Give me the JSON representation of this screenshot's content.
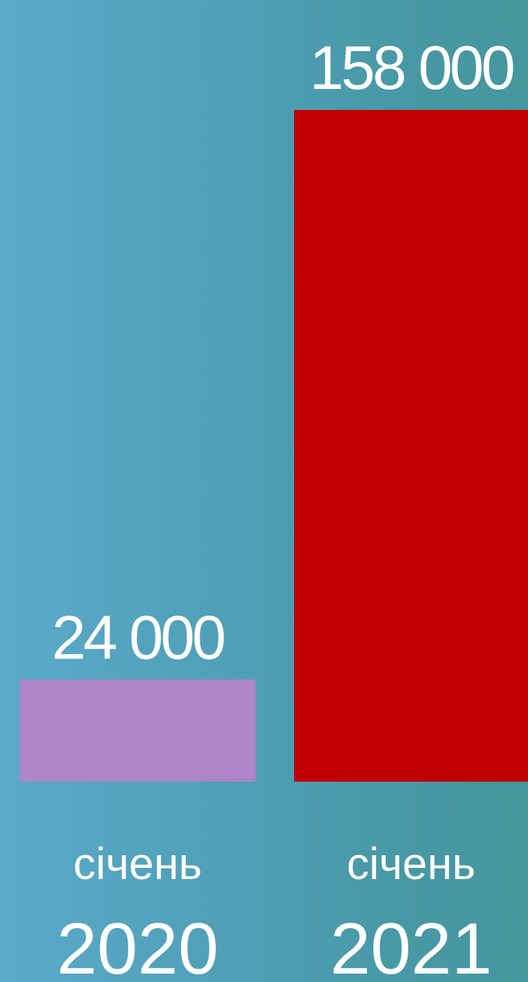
{
  "chart_data": {
    "type": "bar",
    "categories": [
      "2020",
      "2021"
    ],
    "months": [
      "січень",
      "січень"
    ],
    "values": [
      24000,
      158000
    ],
    "value_labels": [
      "24 000",
      "158 000"
    ],
    "colors": [
      "#ad85c8",
      "#c00000"
    ],
    "title": "",
    "xlabel": "",
    "ylabel": "",
    "ylim": [
      0,
      158000
    ],
    "grid": false,
    "legend": "none"
  }
}
